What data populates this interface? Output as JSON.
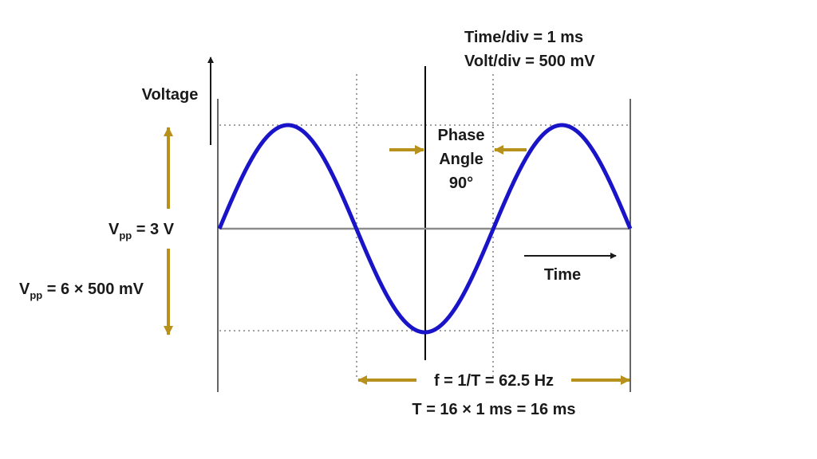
{
  "settings": {
    "time_div": "Time/div = 1 ms",
    "volt_div": "Volt/div = 500 mV"
  },
  "axes": {
    "y_label": "Voltage",
    "x_label": "Time"
  },
  "phase": {
    "line1": "Phase",
    "line2": "Angle",
    "line3": "90°"
  },
  "vpp": {
    "main": "V",
    "sub": "pp",
    "value1": " = 3 V",
    "value2": " = 6 × 500 mV"
  },
  "frequency": {
    "formula": "f = 1/T = 62.5 Hz",
    "period": "T = 16 × 1 ms = 16 ms"
  },
  "colors": {
    "wave": "#1a14c8",
    "arrow": "#b8901c",
    "grid": "#a0a0a0",
    "baseline": "#8c8c8c",
    "text": "#1a1a1a"
  },
  "chart_data": {
    "type": "line",
    "signal": "sine",
    "amplitude_divisions": 3,
    "periods_shown": 1.5,
    "phase_shift_degrees": 90
  }
}
